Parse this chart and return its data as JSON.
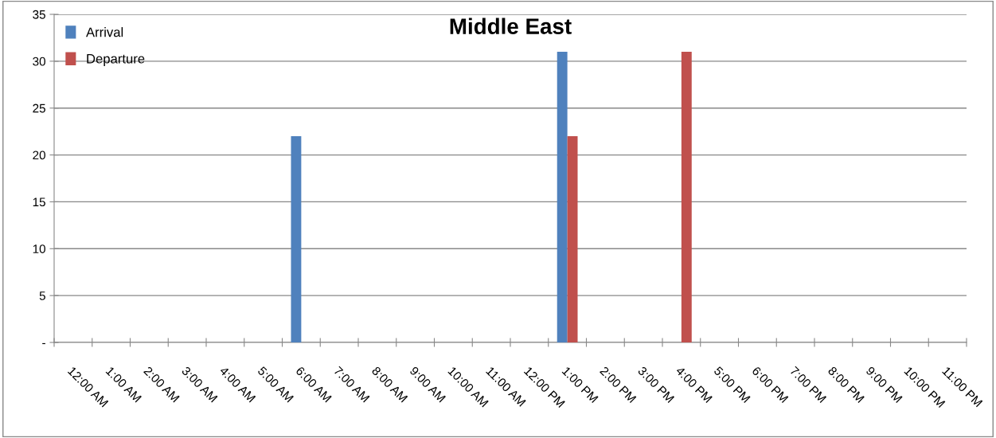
{
  "chart_data": {
    "type": "bar",
    "title": "Middle East",
    "categories": [
      "12:00 AM",
      "1:00 AM",
      "2:00 AM",
      "3:00 AM",
      "4:00 AM",
      "5:00 AM",
      "6:00 AM",
      "7:00 AM",
      "8:00 AM",
      "9:00 AM",
      "10:00 AM",
      "11:00 AM",
      "12:00 PM",
      "1:00 PM",
      "2:00 PM",
      "3:00 PM",
      "4:00 PM",
      "5:00 PM",
      "6:00 PM",
      "7:00 PM",
      "8:00 PM",
      "9:00 PM",
      "10:00 PM",
      "11:00 PM"
    ],
    "series": [
      {
        "name": "Arrival",
        "color": "#4f81bd",
        "values": [
          0,
          0,
          0,
          0,
          0,
          0,
          22,
          0,
          0,
          0,
          0,
          0,
          0,
          31,
          0,
          0,
          0,
          0,
          0,
          0,
          0,
          0,
          0,
          0
        ]
      },
      {
        "name": "Departure",
        "color": "#c0504d",
        "values": [
          0,
          0,
          0,
          0,
          0,
          0,
          0,
          0,
          0,
          0,
          0,
          0,
          0,
          22,
          0,
          0,
          31,
          0,
          0,
          0,
          0,
          0,
          0,
          0
        ]
      }
    ],
    "ylim": [
      0,
      35
    ],
    "yticks": [
      {
        "value": 0,
        "label": "-"
      },
      5,
      10,
      15,
      20,
      25,
      30,
      35
    ],
    "grid": "y",
    "legend": "top left"
  }
}
